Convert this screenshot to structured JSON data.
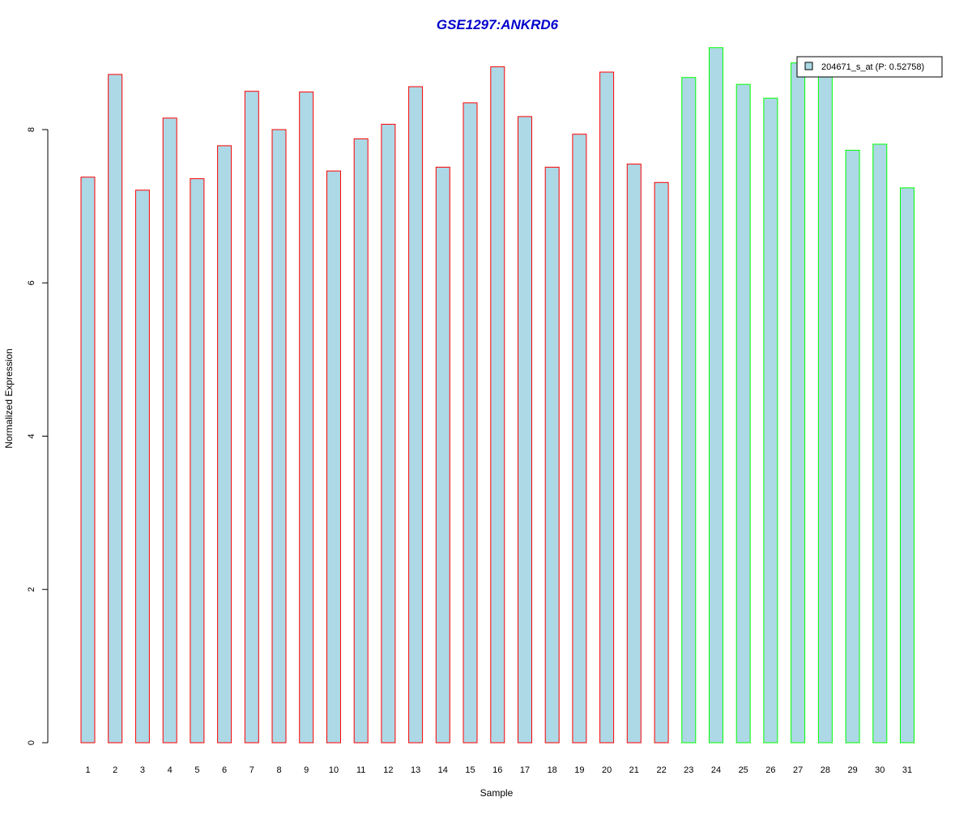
{
  "chart_data": {
    "type": "bar",
    "title": "GSE1297:ANKRD6",
    "title_color": "#0000CC",
    "xlabel": "Sample",
    "ylabel": "Normalized Expression",
    "ylim": [
      0,
      9.2
    ],
    "yticks": [
      0,
      2,
      4,
      6,
      8
    ],
    "grid": false,
    "legend_position": "top-right",
    "categories": [
      "1",
      "2",
      "3",
      "4",
      "5",
      "6",
      "7",
      "8",
      "9",
      "10",
      "11",
      "12",
      "13",
      "14",
      "15",
      "16",
      "17",
      "18",
      "19",
      "20",
      "21",
      "22",
      "23",
      "24",
      "25",
      "26",
      "27",
      "28",
      "29",
      "30",
      "31"
    ],
    "series": [
      {
        "name": "204671_s_at (P: 0.52758)",
        "fill_color": "#ADD8E6",
        "values": [
          7.38,
          8.72,
          7.21,
          8.15,
          7.36,
          7.79,
          8.5,
          8.0,
          8.49,
          7.46,
          7.88,
          8.07,
          8.56,
          7.51,
          8.35,
          8.82,
          8.17,
          7.51,
          7.94,
          8.75,
          7.55,
          7.31,
          8.68,
          9.07,
          8.59,
          8.41,
          8.87,
          8.73,
          7.73,
          7.81,
          7.24
        ]
      }
    ],
    "groups": [
      {
        "border_color": "#FF0000",
        "samples": [
          "1",
          "2",
          "3",
          "4",
          "5",
          "6",
          "7",
          "8",
          "9",
          "10",
          "11",
          "12",
          "13",
          "14",
          "15",
          "16",
          "17",
          "18",
          "19",
          "20",
          "21",
          "22"
        ]
      },
      {
        "border_color": "#00FF00",
        "samples": [
          "23",
          "24",
          "25",
          "26",
          "27",
          "28",
          "29",
          "30",
          "31"
        ]
      }
    ],
    "legend": [
      {
        "label": "204671_s_at (P: 0.52758)",
        "swatch_color": "#ADD8E6"
      }
    ]
  }
}
